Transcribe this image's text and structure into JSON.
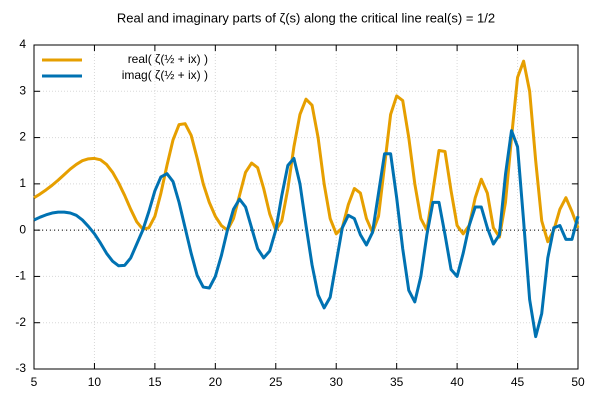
{
  "chart_data": {
    "type": "line",
    "title": "Real and imaginary parts of ζ(s) along the critical line real(s) = 1/2",
    "x": [
      5,
      5.5,
      6,
      6.5,
      7,
      7.5,
      8,
      8.5,
      9,
      9.5,
      10,
      10.5,
      11,
      11.5,
      12,
      12.5,
      13,
      13.5,
      14,
      14.5,
      15,
      15.5,
      16,
      16.5,
      17,
      17.5,
      18,
      18.5,
      19,
      19.5,
      20,
      20.5,
      21,
      21.5,
      22,
      22.5,
      23,
      23.5,
      24,
      24.5,
      25,
      25.5,
      26,
      26.5,
      27,
      27.5,
      28,
      28.5,
      29,
      29.5,
      30,
      30.5,
      31,
      31.5,
      32,
      32.5,
      33,
      33.5,
      34,
      34.5,
      35,
      35.5,
      36,
      36.5,
      37,
      37.5,
      38,
      38.5,
      39,
      39.5,
      40,
      40.5,
      41,
      41.5,
      42,
      42.5,
      43,
      43.5,
      44,
      44.5,
      45,
      45.5,
      46,
      46.5,
      47,
      47.5,
      48,
      48.5,
      49,
      49.5,
      50
    ],
    "series": [
      {
        "name": "real( ζ(½ + ix) )",
        "color": "#e69f00",
        "values": [
          0.7,
          0.78,
          0.87,
          0.97,
          1.08,
          1.2,
          1.32,
          1.42,
          1.5,
          1.54,
          1.55,
          1.52,
          1.42,
          1.25,
          1.02,
          0.75,
          0.45,
          0.18,
          0.02,
          0.05,
          0.3,
          0.8,
          1.4,
          1.95,
          2.28,
          2.3,
          2.05,
          1.55,
          1.0,
          0.6,
          0.3,
          0.1,
          0.0,
          0.25,
          0.75,
          1.25,
          1.45,
          1.35,
          0.9,
          0.35,
          0.0,
          0.2,
          0.9,
          1.8,
          2.5,
          2.83,
          2.7,
          2.0,
          1.0,
          0.25,
          -0.08,
          0.05,
          0.55,
          0.9,
          0.8,
          0.25,
          -0.05,
          0.3,
          1.4,
          2.5,
          2.9,
          2.8,
          2.0,
          1.0,
          0.25,
          0.0,
          0.85,
          1.72,
          1.7,
          0.85,
          0.1,
          -0.08,
          0.1,
          0.7,
          1.1,
          0.8,
          0.05,
          -0.15,
          0.6,
          2.0,
          3.3,
          3.65,
          3.0,
          1.5,
          0.2,
          -0.25,
          0.0,
          0.45,
          0.7,
          0.4,
          0.05
        ]
      },
      {
        "name": "imag( ζ(½ + ix) )",
        "color": "#0072b2",
        "values": [
          0.22,
          0.28,
          0.33,
          0.37,
          0.39,
          0.39,
          0.37,
          0.32,
          0.22,
          0.08,
          -0.08,
          -0.28,
          -0.5,
          -0.67,
          -0.77,
          -0.76,
          -0.6,
          -0.3,
          0.0,
          0.4,
          0.85,
          1.15,
          1.22,
          1.05,
          0.6,
          0.05,
          -0.5,
          -0.98,
          -1.23,
          -1.25,
          -1.0,
          -0.55,
          0.0,
          0.45,
          0.67,
          0.5,
          0.05,
          -0.4,
          -0.6,
          -0.45,
          0.0,
          0.75,
          1.4,
          1.55,
          1.0,
          0.1,
          -0.75,
          -1.4,
          -1.68,
          -1.45,
          -0.7,
          0.05,
          0.32,
          0.25,
          -0.1,
          -0.32,
          -0.05,
          0.8,
          1.65,
          1.65,
          0.7,
          -0.4,
          -1.3,
          -1.55,
          -1.0,
          -0.1,
          0.6,
          0.6,
          -0.1,
          -0.85,
          -1.0,
          -0.5,
          0.1,
          0.5,
          0.5,
          0.05,
          -0.3,
          -0.1,
          1.2,
          2.15,
          1.8,
          0.2,
          -1.5,
          -2.3,
          -1.8,
          -0.6,
          0.05,
          0.1,
          -0.2,
          -0.2,
          0.3
        ]
      }
    ],
    "xlim": [
      5,
      50
    ],
    "xticks": [
      5,
      10,
      15,
      20,
      25,
      30,
      35,
      40,
      45,
      50
    ],
    "ylim": [
      -3,
      4
    ],
    "yticks": [
      -3,
      -2,
      -1,
      0,
      1,
      2,
      3,
      4
    ],
    "grid": true,
    "legend": "top-left"
  }
}
